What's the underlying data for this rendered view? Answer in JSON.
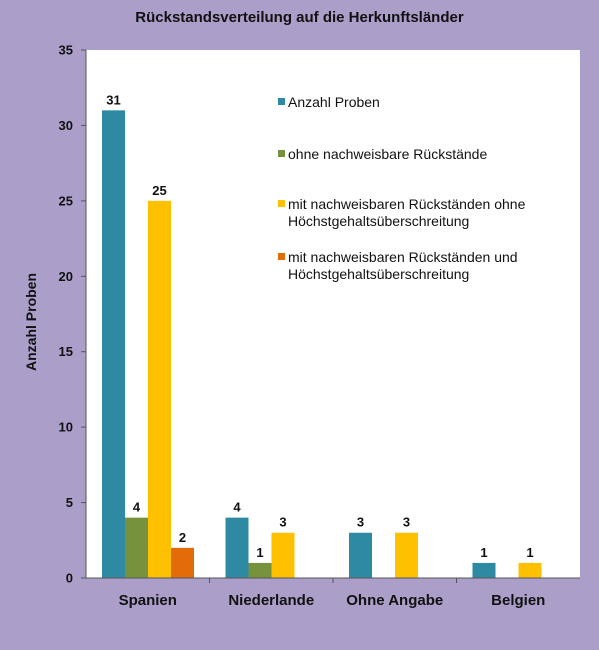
{
  "chart_data": {
    "type": "bar",
    "title": "Rückstandsverteilung  auf die Herkunftsländer",
    "xlabel": "",
    "ylabel": "Anzahl Proben",
    "ylim": [
      0,
      35
    ],
    "yticks": [
      0,
      5,
      10,
      15,
      20,
      25,
      30,
      35
    ],
    "grid": false,
    "legend_position": "inside-top-right",
    "categories": [
      "Spanien",
      "Niederlande",
      "Ohne Angabe",
      "Belgien"
    ],
    "series": [
      {
        "name": "Anzahl Proben",
        "color": "#2e8aa3",
        "values": [
          31,
          4,
          3,
          1
        ]
      },
      {
        "name": "ohne nachweisbare Rückstände",
        "color": "#76923c",
        "values": [
          4,
          1,
          null,
          null
        ]
      },
      {
        "name": "mit nachweisbaren Rückständen ohne Höchstgehaltsüberschreitung",
        "color": "#ffc000",
        "values": [
          25,
          3,
          3,
          1
        ]
      },
      {
        "name": "mit nachweisbaren Rückständen und Höchstgehaltsüberschreitung",
        "color": "#e36c0a",
        "values": [
          2,
          null,
          null,
          null
        ]
      }
    ],
    "legend_lines": [
      [
        "Anzahl Proben"
      ],
      [
        "ohne nachweisbare Rückstände"
      ],
      [
        "mit nachweisbaren Rückständen ohne",
        "Höchstgehaltsüberschreitung"
      ],
      [
        "mit nachweisbaren Rückständen und",
        "Höchstgehaltsüberschreitung"
      ]
    ],
    "plot_background": "#ffffff",
    "page_background": "#ab9fc9"
  }
}
